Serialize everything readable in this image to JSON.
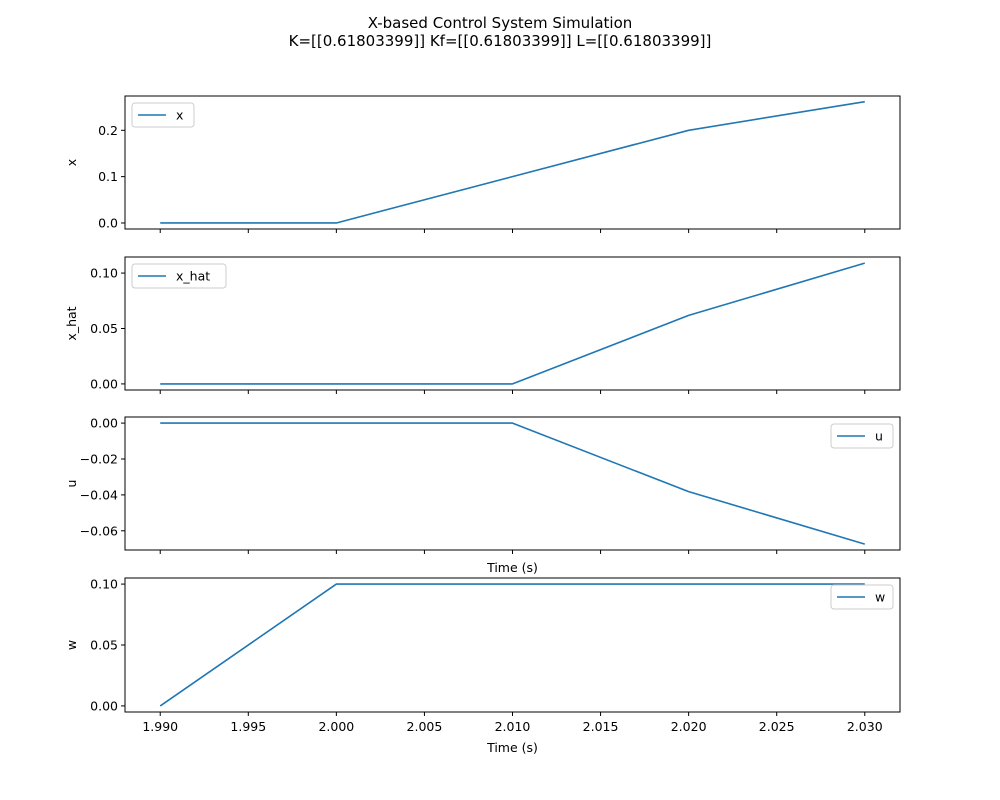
{
  "chart_data": {
    "title": "X-based Control System Simulation",
    "subtitle": "K=[[0.61803399]] Kf=[[0.61803399]] L=[[0.61803399]]",
    "color": "#1f77b4",
    "xlim": [
      1.988,
      2.032
    ],
    "xticks": [
      "1.990",
      "1.995",
      "2.000",
      "2.005",
      "2.010",
      "2.015",
      "2.020",
      "2.025",
      "2.030"
    ],
    "xtick_values": [
      1.99,
      1.995,
      2.0,
      2.005,
      2.01,
      2.015,
      2.02,
      2.025,
      2.03
    ],
    "subplots": [
      {
        "type": "line",
        "ylabel": "x",
        "xlabel": "",
        "show_xtick_labels": false,
        "ylim": [
          -0.013,
          0.274
        ],
        "yticks": [
          "0.0",
          "0.1",
          "0.2"
        ],
        "ytick_values": [
          0.0,
          0.1,
          0.2
        ],
        "legend": "upper-left",
        "series": [
          {
            "name": "x",
            "x": [
              1.99,
              2.0,
              2.01,
              2.02,
              2.03
            ],
            "y": [
              0.0,
              0.0,
              0.1,
              0.2,
              0.2618
            ]
          }
        ]
      },
      {
        "type": "line",
        "ylabel": "x_hat",
        "xlabel": "",
        "show_xtick_labels": false,
        "ylim": [
          -0.0055,
          0.1145
        ],
        "yticks": [
          "0.00",
          "0.05",
          "0.10"
        ],
        "ytick_values": [
          0.0,
          0.05,
          0.1
        ],
        "legend": "upper-left",
        "series": [
          {
            "name": "x_hat",
            "x": [
              1.99,
              2.0,
              2.01,
              2.02,
              2.03
            ],
            "y": [
              0.0,
              0.0,
              0.0,
              0.0618,
              0.109
            ]
          }
        ]
      },
      {
        "type": "line",
        "ylabel": "u",
        "xlabel": "Time (s)",
        "show_xtick_labels": false,
        "ylim": [
          -0.0707,
          0.0034
        ],
        "yticks": [
          "0.00",
          "−0.02",
          "−0.04",
          "−0.06"
        ],
        "ytick_values": [
          0.0,
          -0.02,
          -0.04,
          -0.06
        ],
        "legend": "upper-right",
        "series": [
          {
            "name": "u",
            "x": [
              1.99,
              2.0,
              2.01,
              2.02,
              2.03
            ],
            "y": [
              0.0,
              0.0,
              0.0,
              -0.0382,
              -0.0674
            ]
          }
        ]
      },
      {
        "type": "line",
        "ylabel": "w",
        "xlabel": "Time (s)",
        "show_xtick_labels": true,
        "ylim": [
          -0.005,
          0.105
        ],
        "yticks": [
          "0.00",
          "0.05",
          "0.10"
        ],
        "ytick_values": [
          0.0,
          0.05,
          0.1
        ],
        "legend": "upper-right",
        "series": [
          {
            "name": "w",
            "x": [
              1.99,
              2.0,
              2.01,
              2.02,
              2.03
            ],
            "y": [
              0.0,
              0.1,
              0.1,
              0.1,
              0.1
            ]
          }
        ]
      }
    ]
  }
}
